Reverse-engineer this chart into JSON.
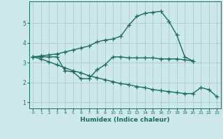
{
  "line1_x": [
    0,
    1,
    2,
    3,
    4,
    5,
    6,
    7,
    8,
    9,
    10,
    11,
    12,
    13,
    14,
    15,
    16,
    17,
    18,
    19,
    20
  ],
  "line1_y": [
    3.3,
    3.35,
    3.4,
    3.45,
    3.55,
    3.65,
    3.75,
    3.85,
    4.05,
    4.15,
    4.2,
    4.35,
    4.9,
    5.35,
    5.5,
    5.55,
    5.6,
    5.1,
    4.4,
    3.3,
    3.1
  ],
  "line2_x": [
    0,
    1,
    2,
    3,
    4,
    5,
    6,
    7,
    8,
    9,
    10,
    11,
    12,
    13,
    14,
    15,
    16,
    17,
    18,
    19,
    20
  ],
  "line2_y": [
    3.3,
    3.3,
    3.3,
    3.3,
    2.6,
    2.55,
    2.2,
    2.2,
    2.65,
    2.9,
    3.3,
    3.3,
    3.25,
    3.25,
    3.25,
    3.25,
    3.2,
    3.2,
    3.2,
    3.15,
    3.1
  ],
  "line3_x": [
    0,
    1,
    2,
    3,
    4,
    5,
    6,
    7,
    8,
    9,
    10,
    11,
    12,
    13,
    14,
    15,
    16,
    17,
    18,
    19,
    20,
    21,
    22,
    23
  ],
  "line3_y": [
    3.3,
    3.2,
    3.05,
    2.9,
    2.75,
    2.6,
    2.5,
    2.35,
    2.25,
    2.15,
    2.05,
    1.95,
    1.9,
    1.8,
    1.75,
    1.65,
    1.6,
    1.55,
    1.5,
    1.45,
    1.45,
    1.75,
    1.65,
    1.3
  ],
  "line_color": "#1a6b5e",
  "bg_color": "#cce8e8",
  "grid_color": "#aacccc",
  "xlabel": "Humidex (Indice chaleur)",
  "xlim": [
    -0.5,
    23.5
  ],
  "ylim": [
    0.7,
    6.1
  ],
  "yticks": [
    1,
    2,
    3,
    4,
    5
  ],
  "xticks": [
    0,
    1,
    2,
    3,
    4,
    5,
    6,
    7,
    8,
    9,
    10,
    11,
    12,
    13,
    14,
    15,
    16,
    17,
    18,
    19,
    20,
    21,
    22,
    23
  ],
  "marker": "+",
  "markersize": 4,
  "linewidth": 1.0
}
